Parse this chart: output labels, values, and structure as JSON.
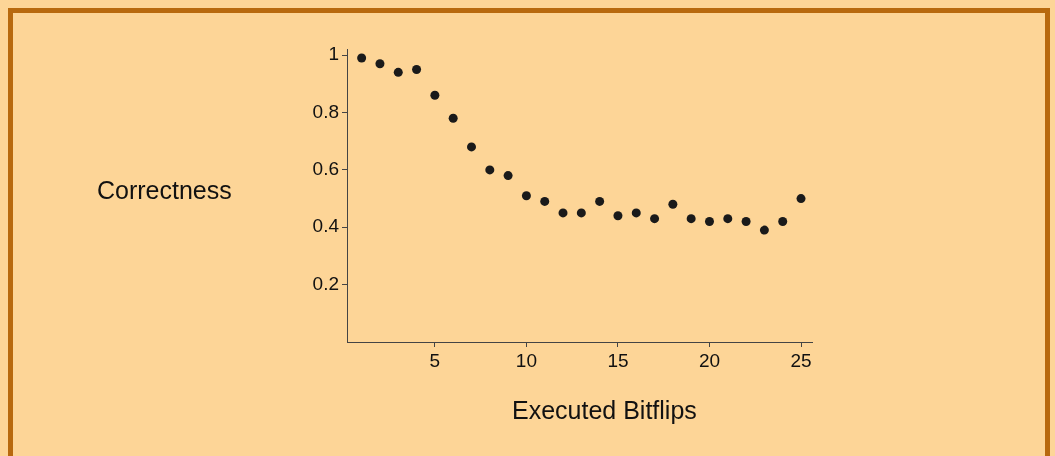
{
  "chart_data": {
    "type": "scatter",
    "xlabel": "Executed Bitflips",
    "ylabel": "Correctness",
    "x": [
      1,
      2,
      3,
      4,
      5,
      6,
      7,
      8,
      9,
      10,
      11,
      12,
      13,
      14,
      15,
      16,
      17,
      18,
      19,
      20,
      21,
      22,
      23,
      24,
      25
    ],
    "series": [
      {
        "color": "#1a1a1a",
        "values": [
          0.99,
          0.97,
          0.94,
          0.95,
          0.86,
          0.78,
          0.68,
          0.6,
          0.58,
          0.51,
          0.49,
          0.45,
          0.45,
          0.49,
          0.44,
          0.45,
          0.43,
          0.48,
          0.43,
          0.42,
          0.43,
          0.42,
          0.39,
          0.42,
          0.5
        ]
      }
    ],
    "xlim": [
      0.2,
      25.6
    ],
    "ylim": [
      0,
      1.02
    ],
    "xticks": [
      5,
      10,
      15,
      20,
      25
    ],
    "yticks": [
      0.2,
      0.4,
      0.6,
      0.8,
      1
    ],
    "grid": false,
    "legend": false,
    "marker": "circle"
  }
}
